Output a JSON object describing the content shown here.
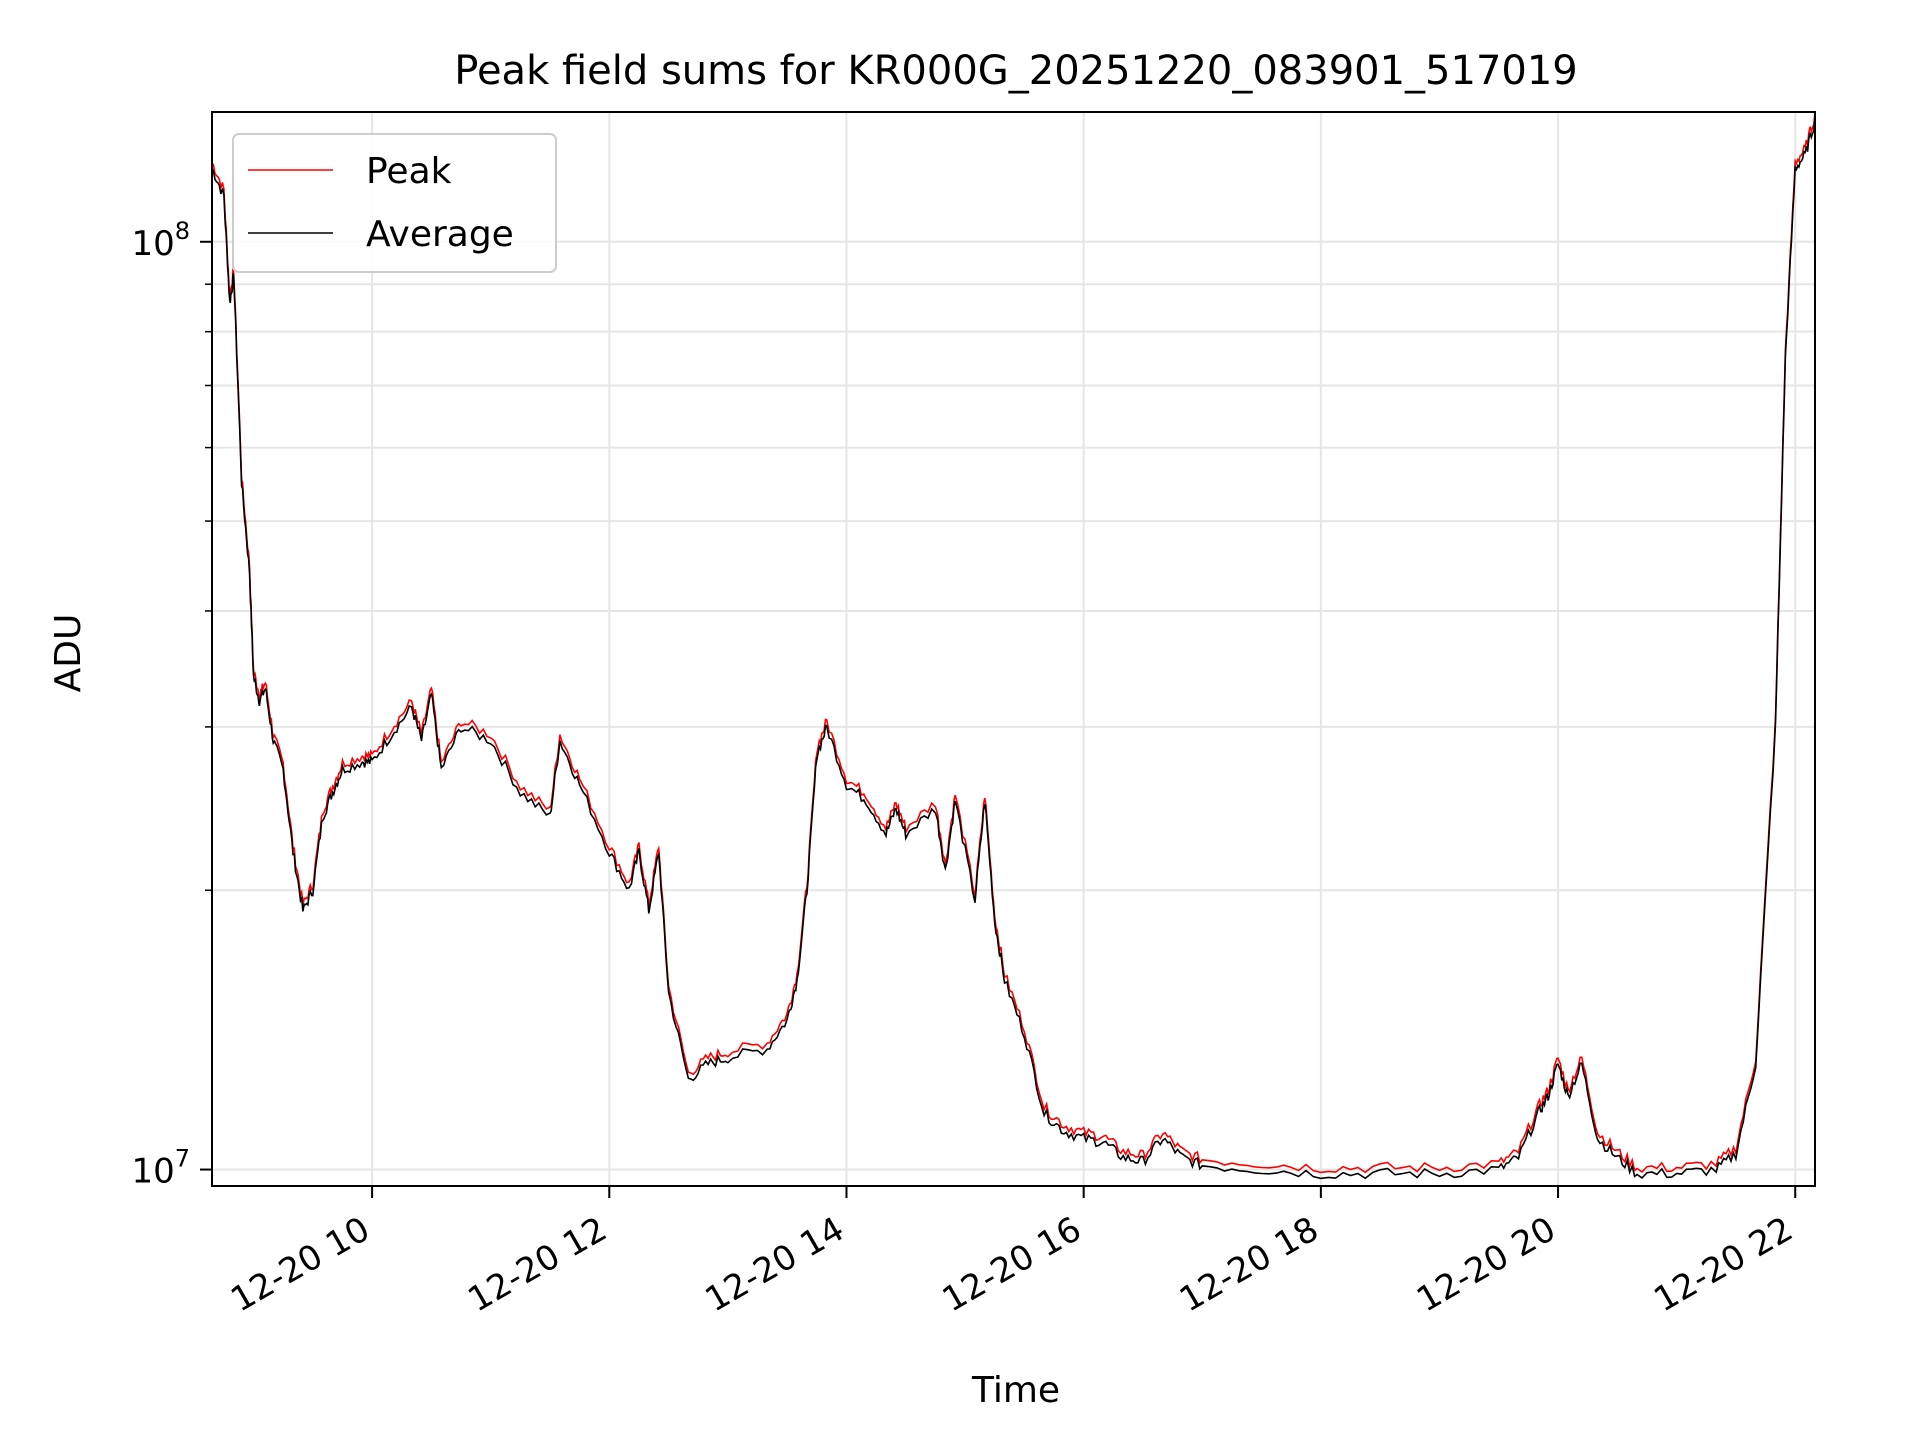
{
  "chart_data": {
    "type": "line",
    "title": "Peak field sums for KR000G_20251220_083901_517019",
    "xlabel": "Time",
    "ylabel": "ADU",
    "yscale": "log",
    "grid": true,
    "legend_placement": "top-left",
    "xlim": [
      "2025-12-20 08:39",
      "2025-12-20 22:10"
    ],
    "ylim": [
      9600000.0,
      138000000.0
    ],
    "xticks": [
      {
        "value": "2025-12-20 10:00",
        "label": "12-20 10"
      },
      {
        "value": "2025-12-20 12:00",
        "label": "12-20 12"
      },
      {
        "value": "2025-12-20 14:00",
        "label": "12-20 14"
      },
      {
        "value": "2025-12-20 16:00",
        "label": "12-20 16"
      },
      {
        "value": "2025-12-20 18:00",
        "label": "12-20 18"
      },
      {
        "value": "2025-12-20 20:00",
        "label": "12-20 20"
      },
      {
        "value": "2025-12-20 22:00",
        "label": "12-20 22"
      }
    ],
    "yticks": [
      {
        "value": 10000000,
        "label": "10^7"
      },
      {
        "value": 100000000,
        "label": "10^8"
      }
    ],
    "series": [
      {
        "name": "Peak",
        "color": "#ff0000",
        "offset_factor": 1.015
      },
      {
        "name": "Average",
        "color": "#000000",
        "offset_factor": 1.0
      }
    ],
    "x": [
      "2025-12-20 08:39",
      "2025-12-20 08:45",
      "2025-12-20 08:48",
      "2025-12-20 08:50",
      "2025-12-20 08:54",
      "2025-12-20 08:58",
      "2025-12-20 09:00",
      "2025-12-20 09:03",
      "2025-12-20 09:06",
      "2025-12-20 09:10",
      "2025-12-20 09:15",
      "2025-12-20 09:20",
      "2025-12-20 09:25",
      "2025-12-20 09:30",
      "2025-12-20 09:35",
      "2025-12-20 09:40",
      "2025-12-20 09:45",
      "2025-12-20 09:55",
      "2025-12-20 10:00",
      "2025-12-20 10:10",
      "2025-12-20 10:20",
      "2025-12-20 10:25",
      "2025-12-20 10:30",
      "2025-12-20 10:35",
      "2025-12-20 10:45",
      "2025-12-20 11:00",
      "2025-12-20 11:15",
      "2025-12-20 11:30",
      "2025-12-20 11:35",
      "2025-12-20 11:45",
      "2025-12-20 12:00",
      "2025-12-20 12:10",
      "2025-12-20 12:15",
      "2025-12-20 12:20",
      "2025-12-20 12:25",
      "2025-12-20 12:30",
      "2025-12-20 12:40",
      "2025-12-20 12:50",
      "2025-12-20 13:00",
      "2025-12-20 13:20",
      "2025-12-20 13:30",
      "2025-12-20 13:35",
      "2025-12-20 13:40",
      "2025-12-20 13:45",
      "2025-12-20 13:50",
      "2025-12-20 14:00",
      "2025-12-20 14:10",
      "2025-12-20 14:20",
      "2025-12-20 14:25",
      "2025-12-20 14:30",
      "2025-12-20 14:45",
      "2025-12-20 14:50",
      "2025-12-20 14:55",
      "2025-12-20 15:05",
      "2025-12-20 15:10",
      "2025-12-20 15:15",
      "2025-12-20 15:20",
      "2025-12-20 15:30",
      "2025-12-20 15:40",
      "2025-12-20 15:50",
      "2025-12-20 16:00",
      "2025-12-20 16:10",
      "2025-12-20 16:20",
      "2025-12-20 16:30",
      "2025-12-20 16:40",
      "2025-12-20 16:50",
      "2025-12-20 17:00",
      "2025-12-20 17:30",
      "2025-12-20 18:00",
      "2025-12-20 18:30",
      "2025-12-20 19:00",
      "2025-12-20 19:30",
      "2025-12-20 19:40",
      "2025-12-20 19:50",
      "2025-12-20 19:55",
      "2025-12-20 20:00",
      "2025-12-20 20:05",
      "2025-12-20 20:12",
      "2025-12-20 20:20",
      "2025-12-20 20:30",
      "2025-12-20 20:40",
      "2025-12-20 21:00",
      "2025-12-20 21:20",
      "2025-12-20 21:30",
      "2025-12-20 21:40",
      "2025-12-20 21:50",
      "2025-12-20 21:55",
      "2025-12-20 22:00",
      "2025-12-20 22:05",
      "2025-12-20 22:10"
    ],
    "values": [
      120000000.0,
      112000000.0,
      86000000.0,
      92000000.0,
      55000000.0,
      44000000.0,
      34000000.0,
      32000000.0,
      33000000.0,
      29000000.0,
      27000000.0,
      22000000.0,
      19000000.0,
      20000000.0,
      24000000.0,
      25500000.0,
      27000000.0,
      27500000.0,
      27500000.0,
      29500000.0,
      31500000.0,
      29000000.0,
      32500000.0,
      27000000.0,
      30000000.0,
      29000000.0,
      25500000.0,
      24000000.0,
      29000000.0,
      26000000.0,
      22000000.0,
      20000000.0,
      22000000.0,
      19000000.0,
      22000000.0,
      15500000.0,
      12500000.0,
      13000000.0,
      13200000.0,
      13500000.0,
      14500000.0,
      16000000.0,
      20000000.0,
      28000000.0,
      30000000.0,
      26000000.0,
      25000000.0,
      23000000.0,
      24500000.0,
      23000000.0,
      24500000.0,
      21000000.0,
      25000000.0,
      19500000.0,
      25000000.0,
      18500000.0,
      16000000.0,
      14000000.0,
      11500000.0,
      11000000.0,
      10800000.0,
      10700000.0,
      10300000.0,
      10200000.0,
      10800000.0,
      10300000.0,
      10100000.0,
      10000000.0,
      9900000.0,
      9900000.0,
      9900000.0,
      10000000.0,
      10300000.0,
      11500000.0,
      12000000.0,
      13000000.0,
      12000000.0,
      13000000.0,
      10800000.0,
      10300000.0,
      9900000.0,
      9900000.0,
      10000000.0,
      10400000.0,
      13000000.0,
      30000000.0,
      75000000.0,
      120000000.0,
      124000000.0,
      135000000.0
    ]
  }
}
